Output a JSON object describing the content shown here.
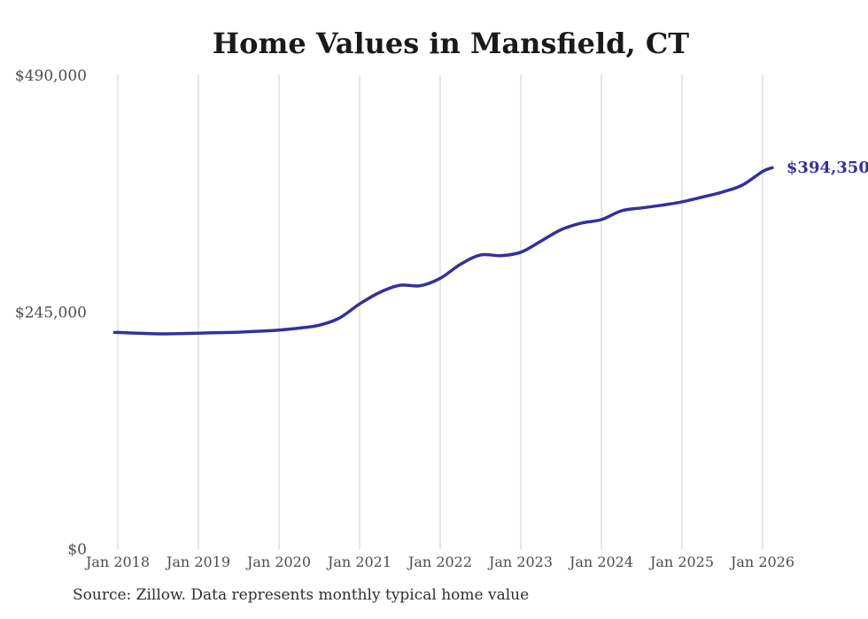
{
  "page": {
    "title": "Home Values in Mansfield, CT",
    "source_note": "Source: Zillow. Data represents monthly typical home value"
  },
  "colors": {
    "line": "#352f9d",
    "end_label": "#352f9d",
    "grid": "#cfcfcf",
    "axis_text": "#4d4d4d",
    "title_text": "#1a1a1a",
    "source_text": "#2e2e2e",
    "background": "#ffffff"
  },
  "chart_data": {
    "type": "line",
    "title": "Home Values in Mansfield, CT",
    "xlabel": "",
    "ylabel": "",
    "legend": "none",
    "grid": "vertical-only",
    "ylim": [
      0,
      490000
    ],
    "xlim": [
      2017.95,
      2026.15
    ],
    "y_ticks": [
      {
        "value": 490000,
        "label": "$490,000"
      },
      {
        "value": 245000,
        "label": "$245,000"
      },
      {
        "value": 0,
        "label": "$0"
      }
    ],
    "x_ticks": [
      {
        "year": 2018,
        "label": "Jan 2018"
      },
      {
        "year": 2019,
        "label": "Jan 2019"
      },
      {
        "year": 2020,
        "label": "Jan 2020"
      },
      {
        "year": 2021,
        "label": "Jan 2021"
      },
      {
        "year": 2022,
        "label": "Jan 2022"
      },
      {
        "year": 2023,
        "label": "Jan 2023"
      },
      {
        "year": 2024,
        "label": "Jan 2024"
      },
      {
        "year": 2025,
        "label": "Jan 2025"
      },
      {
        "year": 2026,
        "label": "Jan 2026"
      }
    ],
    "end_annotation": {
      "label": "$394,350",
      "value": 394350
    },
    "series": [
      {
        "name": "Typical home value",
        "points": [
          {
            "x": 2017.96,
            "value": 224000
          },
          {
            "x": 2018.0,
            "value": 224000
          },
          {
            "x": 2018.25,
            "value": 223200
          },
          {
            "x": 2018.5,
            "value": 222600
          },
          {
            "x": 2018.75,
            "value": 222800
          },
          {
            "x": 2019.0,
            "value": 223300
          },
          {
            "x": 2019.25,
            "value": 223800
          },
          {
            "x": 2019.5,
            "value": 224300
          },
          {
            "x": 2019.75,
            "value": 225300
          },
          {
            "x": 2020.0,
            "value": 226500
          },
          {
            "x": 2020.25,
            "value": 228500
          },
          {
            "x": 2020.5,
            "value": 231500
          },
          {
            "x": 2020.75,
            "value": 239000
          },
          {
            "x": 2021.0,
            "value": 253500
          },
          {
            "x": 2021.25,
            "value": 265500
          },
          {
            "x": 2021.5,
            "value": 272800
          },
          {
            "x": 2021.75,
            "value": 272300
          },
          {
            "x": 2022.0,
            "value": 280000
          },
          {
            "x": 2022.25,
            "value": 294500
          },
          {
            "x": 2022.5,
            "value": 304200
          },
          {
            "x": 2022.75,
            "value": 303400
          },
          {
            "x": 2023.0,
            "value": 307000
          },
          {
            "x": 2023.25,
            "value": 318500
          },
          {
            "x": 2023.5,
            "value": 330300
          },
          {
            "x": 2023.75,
            "value": 337100
          },
          {
            "x": 2024.0,
            "value": 340700
          },
          {
            "x": 2024.25,
            "value": 349900
          },
          {
            "x": 2024.5,
            "value": 352800
          },
          {
            "x": 2024.75,
            "value": 355600
          },
          {
            "x": 2025.0,
            "value": 359100
          },
          {
            "x": 2025.25,
            "value": 364000
          },
          {
            "x": 2025.5,
            "value": 369200
          },
          {
            "x": 2025.75,
            "value": 376500
          },
          {
            "x": 2026.0,
            "value": 390500
          },
          {
            "x": 2026.12,
            "value": 394350
          }
        ]
      }
    ]
  }
}
